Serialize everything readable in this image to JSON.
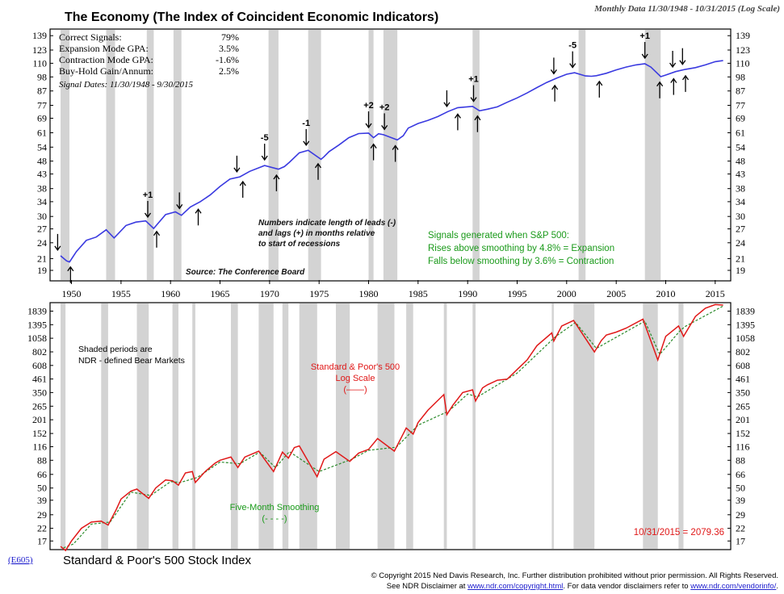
{
  "header": {
    "title": "The Economy (The Index of Coincident Economic Indicators)",
    "subtitle": "Monthly Data 11/30/1948 - 10/31/2015 (Log Scale)"
  },
  "stats": {
    "rows": [
      {
        "label": "Correct Signals:",
        "value": "79%"
      },
      {
        "label": "Expansion Mode GPA:",
        "value": "3.5%"
      },
      {
        "label": "Contraction Mode GPA:",
        "value": "-1.6%"
      },
      {
        "label": "Buy-Hold Gain/Annum:",
        "value": "2.5%"
      }
    ],
    "signal_dates": "Signal Dates: 11/30/1948 - 9/30/2015"
  },
  "notes": {
    "leads_lags": [
      "Numbers indicate length of leads (-)",
      "and lags (+) in months relative",
      "to start of recessions"
    ],
    "source": "Source: The Conference Board",
    "signals": [
      "Signals generated when S&P 500:",
      "Rises above smoothing by 4.8% = Expansion",
      "Falls below smoothing by 3.6% = Contraction"
    ],
    "shaded": [
      "Shaded periods are",
      "NDR - defined Bear Markets"
    ],
    "sp_label": [
      "Standard & Poor's 500",
      "Log Scale",
      "(——)"
    ],
    "smoothing_label": [
      "Five-Month Smoothing",
      "(- - - -)"
    ],
    "last_value": "10/31/2015 = 2079.36"
  },
  "footer": {
    "code": "(E605)",
    "title": "Standard & Poor's 500 Stock Index",
    "copyright": "© Copyright 2015 Ned Davis Research, Inc. Further distribution prohibited without prior permission. All Rights Reserved.",
    "disclaimer_prefix": "See NDR Disclaimer at",
    "link1": "www.ndr.com/copyright.html",
    "disclaimer_mid": ". For data vendor disclaimers refer to",
    "link2": "www.ndr.com/vendorinfo/",
    "disclaimer_end": "."
  },
  "colors": {
    "economy_line": "#3a3ae0",
    "sp500_line": "#e01818",
    "smoothing_line": "#2a8a2a",
    "shade": "#d3d3d3",
    "green_text": "#1a9a1a",
    "red_text": "#e01818",
    "link": "#1a1acc"
  },
  "chart_data": [
    {
      "type": "line",
      "title": "The Economy (The Index of Coincident Economic Indicators)",
      "scale": "log",
      "y_ticks": [
        19,
        21,
        24,
        27,
        30,
        34,
        38,
        43,
        48,
        54,
        61,
        69,
        77,
        87,
        98,
        110,
        123,
        139
      ],
      "x_ticks": [
        1950,
        1955,
        1960,
        1965,
        1970,
        1975,
        1980,
        1985,
        1990,
        1995,
        2000,
        2005,
        2010,
        2015
      ],
      "xlim": [
        1948,
        2016.4
      ],
      "ylim": [
        17.5,
        146
      ],
      "recessions": [
        [
          1948.9,
          1949.8
        ],
        [
          1953.5,
          1954.4
        ],
        [
          1957.6,
          1958.3
        ],
        [
          1960.3,
          1961.1
        ],
        [
          1969.9,
          1970.9
        ],
        [
          1973.9,
          1975.2
        ],
        [
          1980.0,
          1980.5
        ],
        [
          1981.5,
          1982.9
        ],
        [
          1990.5,
          1991.2
        ],
        [
          2001.2,
          2001.9
        ],
        [
          2007.9,
          2009.5
        ]
      ],
      "series": [
        {
          "x": [
            1948.9,
            1949.5,
            1949.8,
            1950.5,
            1951.5,
            1952.5,
            1953.5,
            1954.3,
            1955.5,
            1956.5,
            1957.5,
            1958.3,
            1959.5,
            1960.5,
            1961.1,
            1962,
            1963,
            1964,
            1965,
            1966,
            1967,
            1968,
            1969.5,
            1970.9,
            1971.5,
            1972,
            1973,
            1973.9,
            1975.2,
            1975.5,
            1976,
            1977,
            1978,
            1979,
            1980,
            1980.5,
            1981,
            1981.5,
            1982.9,
            1983.5,
            1984,
            1985,
            1986,
            1987,
            1988,
            1989,
            1990.5,
            1991.2,
            1992,
            1993,
            1994,
            1995,
            1996,
            1997,
            1998,
            1999,
            2000,
            2000.8,
            2001.9,
            2002.5,
            2003,
            2004,
            2005,
            2006,
            2007,
            2007.9,
            2008.5,
            2009.5,
            2010,
            2011,
            2012,
            2013,
            2014,
            2015,
            2015.8
          ],
          "y": [
            21.5,
            20.6,
            20.4,
            22.3,
            24.5,
            25.2,
            26.8,
            25.0,
            27.8,
            28.6,
            28.9,
            27.1,
            30.5,
            31.2,
            30.3,
            32.5,
            34.0,
            36.0,
            38.7,
            41.2,
            42.0,
            44.0,
            46.2,
            44.8,
            45.8,
            47.5,
            51.5,
            52.6,
            48.7,
            49.8,
            52.0,
            55.0,
            58.5,
            60.6,
            60.8,
            58.5,
            60.5,
            60.0,
            57.4,
            59.5,
            63.5,
            66.0,
            67.8,
            70.0,
            73.0,
            75.5,
            76.3,
            73.5,
            74.5,
            76.0,
            79.0,
            82.0,
            85.5,
            89.5,
            93.5,
            97.0,
            100.2,
            101.5,
            98.8,
            98.5,
            99.0,
            101.0,
            104.0,
            106.5,
            108.5,
            109.5,
            106.5,
            98.2,
            99.5,
            102.5,
            104.5,
            106.0,
            108.5,
            111.5,
            112.5
          ]
        }
      ],
      "leads_lags": [
        {
          "label": "",
          "kind": "down",
          "x": 1948.6
        },
        {
          "label": "",
          "kind": "up",
          "x": 1949.9
        },
        {
          "label": "+1",
          "kind": "down",
          "x": 1957.7
        },
        {
          "label": "",
          "kind": "up",
          "x": 1958.6
        },
        {
          "label": "",
          "kind": "down",
          "x": 1960.9
        },
        {
          "label": "",
          "kind": "up",
          "x": 1962.8
        },
        {
          "label": "",
          "kind": "down",
          "x": 1966.7
        },
        {
          "label": "",
          "kind": "up",
          "x": 1967.3
        },
        {
          "label": "-5",
          "kind": "down",
          "x": 1969.5
        },
        {
          "label": "",
          "kind": "up",
          "x": 1970.7
        },
        {
          "label": "-1",
          "kind": "down",
          "x": 1973.7
        },
        {
          "label": "",
          "kind": "up",
          "x": 1974.9
        },
        {
          "label": "+2",
          "kind": "down",
          "x": 1980.0
        },
        {
          "label": "",
          "kind": "up",
          "x": 1980.5
        },
        {
          "label": "+2",
          "kind": "down",
          "x": 1981.6
        },
        {
          "label": "",
          "kind": "up",
          "x": 1982.7
        },
        {
          "label": "",
          "kind": "down",
          "x": 1987.9
        },
        {
          "label": "",
          "kind": "up",
          "x": 1989.0
        },
        {
          "label": "+1",
          "kind": "down",
          "x": 1990.6
        },
        {
          "label": "",
          "kind": "up",
          "x": 1991.0
        },
        {
          "label": "",
          "kind": "down",
          "x": 1998.7
        },
        {
          "label": "",
          "kind": "up",
          "x": 1998.8
        },
        {
          "label": "-5",
          "kind": "down",
          "x": 2000.6
        },
        {
          "label": "",
          "kind": "up",
          "x": 2003.3
        },
        {
          "label": "+1",
          "kind": "down",
          "x": 2007.9
        },
        {
          "label": "",
          "kind": "up",
          "x": 2009.4
        },
        {
          "label": "",
          "kind": "down",
          "x": 2010.7
        },
        {
          "label": "",
          "kind": "up",
          "x": 2010.8
        },
        {
          "label": "",
          "kind": "down",
          "x": 2011.7
        },
        {
          "label": "",
          "kind": "up",
          "x": 2012.0
        }
      ]
    },
    {
      "type": "line",
      "title": "Standard & Poor's 500 Stock Index",
      "scale": "log",
      "y_ticks": [
        17,
        22,
        29,
        39,
        50,
        66,
        88,
        116,
        152,
        201,
        265,
        350,
        461,
        608,
        802,
        1058,
        1395,
        1839
      ],
      "xlim": [
        1948,
        2016.4
      ],
      "ylim": [
        14.5,
        2150
      ],
      "bear_markets": [
        [
          1948.9,
          1949.4
        ],
        [
          1953.0,
          1953.7
        ],
        [
          1956.6,
          1957.8
        ],
        [
          1960.2,
          1960.8
        ],
        [
          1962.2,
          1962.5
        ],
        [
          1966.1,
          1966.8
        ],
        [
          1968.9,
          1970.4
        ],
        [
          1971.3,
          1971.9
        ],
        [
          1973.0,
          1974.8
        ],
        [
          1976.7,
          1978.1
        ],
        [
          1980.9,
          1982.6
        ],
        [
          1983.8,
          1984.5
        ],
        [
          1987.6,
          1987.9
        ],
        [
          1990.5,
          1990.8
        ],
        [
          1998.5,
          1998.7
        ],
        [
          2000.7,
          2002.8
        ],
        [
          2007.7,
          2009.2
        ],
        [
          2011.3,
          2011.8
        ]
      ],
      "series": [
        {
          "name": "Standard & Poor's 500",
          "x": [
            1948.9,
            1949.4,
            1950,
            1951,
            1952,
            1953,
            1953.7,
            1954.5,
            1955,
            1956,
            1956.6,
            1957.8,
            1958.5,
            1959.5,
            1960.2,
            1960.8,
            1961.5,
            1962.2,
            1962.5,
            1963.5,
            1964.5,
            1965,
            1966.1,
            1966.8,
            1967.5,
            1968.9,
            1970.4,
            1971.3,
            1971.9,
            1972.5,
            1973.0,
            1974.8,
            1975.5,
            1976.7,
            1978.1,
            1979,
            1980,
            1980.9,
            1982.6,
            1983.8,
            1984.5,
            1985,
            1986,
            1987.6,
            1987.9,
            1988.5,
            1989.5,
            1990.5,
            1990.8,
            1991.5,
            1992,
            1993,
            1994,
            1995,
            1996,
            1997,
            1998.5,
            1998.7,
            1999.5,
            2000.7,
            2002.8,
            2003.5,
            2004,
            2005,
            2006,
            2007.7,
            2009.2,
            2010,
            2011.3,
            2011.8,
            2013,
            2014,
            2015,
            2015.8
          ],
          "y": [
            15.2,
            14.0,
            17.0,
            22,
            25,
            25.5,
            23.5,
            32,
            40,
            47,
            49,
            40.5,
            50,
            59,
            58,
            53,
            68,
            70,
            56,
            70,
            83,
            88,
            94,
            76,
            94,
            106,
            70,
            104,
            92,
            114,
            118,
            63,
            90,
            105,
            86,
            102,
            110,
            137,
            106,
            170,
            150,
            190,
            245,
            336,
            223,
            270,
            350,
            370,
            295,
            385,
            410,
            450,
            460,
            560,
            680,
            910,
            1180,
            1000,
            1360,
            1520,
            800,
            1010,
            1130,
            1200,
            1300,
            1560,
            680,
            1100,
            1360,
            1100,
            1650,
            1950,
            2100,
            2079
          ]
        },
        {
          "name": "Five-Month Smoothing",
          "x": [
            1949.2,
            1950.2,
            1952,
            1953.9,
            1956,
            1958.0,
            1960,
            1961.0,
            1962.7,
            1965,
            1967.0,
            1969,
            1970.6,
            1972,
            1975.0,
            1978.3,
            1980,
            1982.8,
            1985,
            1988.1,
            1990,
            1991.0,
            1995,
            1998.9,
            2000.9,
            2003.0,
            2007.9,
            2009.4,
            2011.5,
            2012,
            2015.8
          ],
          "y": [
            14.8,
            16.0,
            24,
            25,
            46,
            43,
            57,
            56,
            62,
            85,
            82,
            104,
            76,
            105,
            70,
            90,
            108,
            115,
            180,
            240,
            340,
            320,
            520,
            1100,
            1460,
            860,
            1500,
            760,
            1250,
            1350,
            2040
          ]
        }
      ]
    }
  ]
}
